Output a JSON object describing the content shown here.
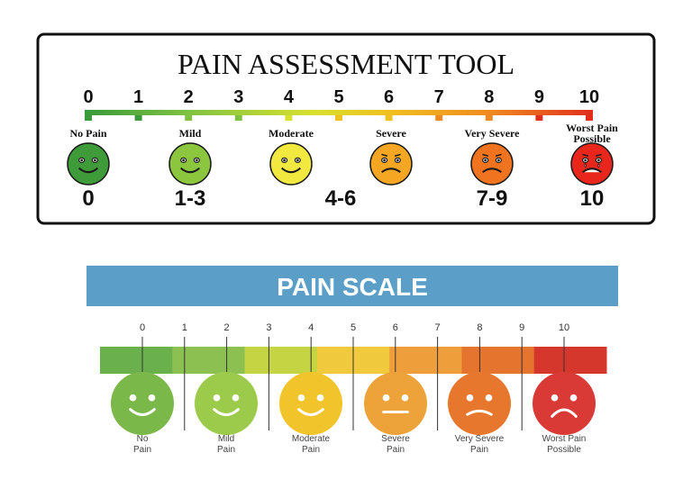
{
  "tool": {
    "title": "PAIN ASSESSMENT TOOL",
    "ticks": [
      "0",
      "1",
      "2",
      "3",
      "4",
      "5",
      "6",
      "7",
      "8",
      "9",
      "10"
    ],
    "faces": [
      {
        "label": [
          "No Pain"
        ],
        "color": "#3f9a3a",
        "mood": "happy"
      },
      {
        "label": [
          "Mild"
        ],
        "color": "#8cc63f",
        "mood": "smile"
      },
      {
        "label": [
          "Moderate"
        ],
        "color": "#f2e940",
        "mood": "smile"
      },
      {
        "label": [
          "Severe"
        ],
        "color": "#f5a623",
        "mood": "sad"
      },
      {
        "label": [
          "Very Severe"
        ],
        "color": "#f07320",
        "mood": "sad"
      },
      {
        "label": [
          "Worst Pain",
          "Possible"
        ],
        "color": "#e8261c",
        "mood": "crying"
      }
    ],
    "ranges": [
      "0",
      "1-3",
      "4-6",
      "7-9",
      "10"
    ],
    "bar_colors": [
      "#3a9a3a",
      "#7fc242",
      "#d8e030",
      "#f0c020",
      "#f08a20",
      "#e0301c"
    ]
  },
  "scale": {
    "title": "PAIN SCALE",
    "header_color": "#5b9fc9",
    "ticks": [
      "0",
      "1",
      "2",
      "3",
      "4",
      "5",
      "6",
      "7",
      "8",
      "9",
      "10"
    ],
    "faces": [
      {
        "label": [
          "No",
          "Pain"
        ],
        "color": "#7bb84a",
        "mood": "smile"
      },
      {
        "label": [
          "Mild",
          "Pain"
        ],
        "color": "#9ccb4c",
        "mood": "smile"
      },
      {
        "label": [
          "Moderate",
          "Pain"
        ],
        "color": "#f2c42c",
        "mood": "smile"
      },
      {
        "label": [
          "Severe",
          "Pain"
        ],
        "color": "#eea33a",
        "mood": "neutral"
      },
      {
        "label": [
          "Very Severe",
          "Pain"
        ],
        "color": "#e8772e",
        "mood": "sad"
      },
      {
        "label": [
          "Worst Pain",
          "Possible"
        ],
        "color": "#d93a35",
        "mood": "frown"
      }
    ],
    "bar_colors": [
      "#6ab04c",
      "#8cc152",
      "#c5d443",
      "#f1c93c",
      "#ee9f3c",
      "#e5742f",
      "#d6372d"
    ]
  }
}
